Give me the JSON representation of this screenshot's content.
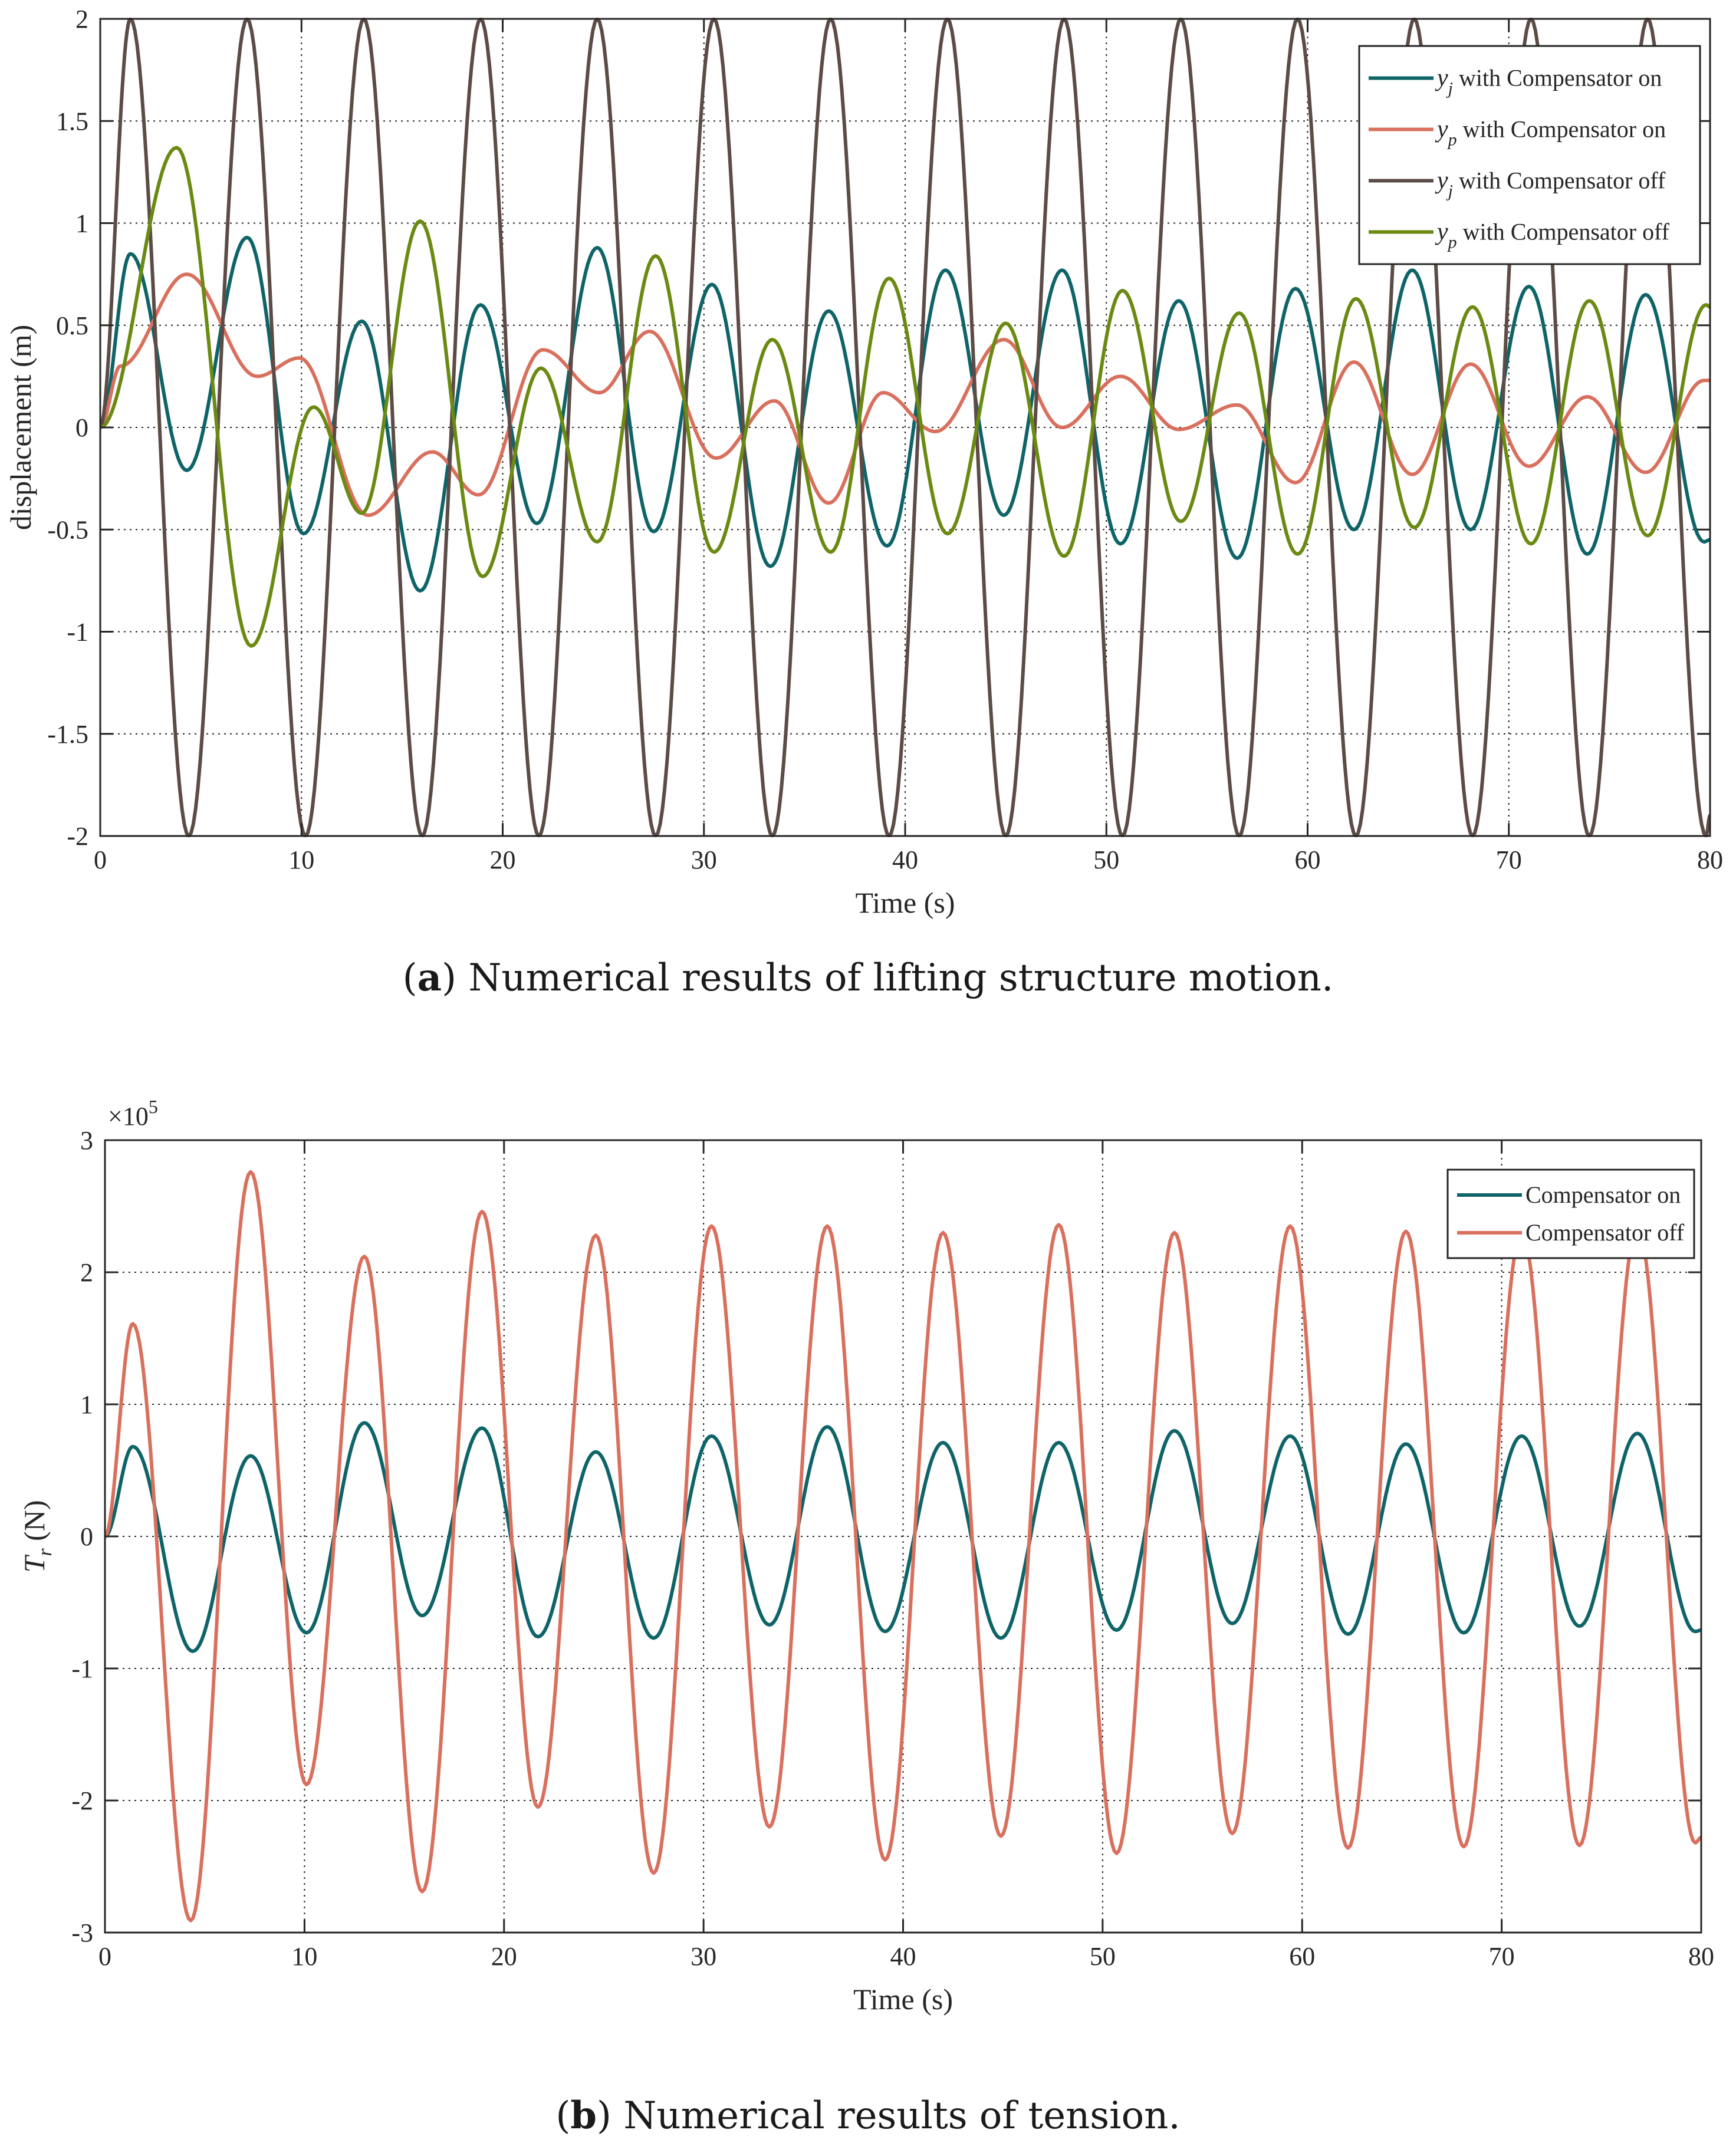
{
  "chart_data": [
    {
      "type": "line",
      "id": "a",
      "caption_letter": "a",
      "caption_text": ") Numerical results of lifting structure motion.",
      "xlabel": "Time (s)",
      "ylabel": "displacement (m)",
      "xlim": [
        0,
        80
      ],
      "ylim": [
        -2,
        2
      ],
      "xticks": [
        0,
        10,
        20,
        30,
        40,
        50,
        60,
        70,
        80
      ],
      "xtick_labels": [
        "0",
        "10",
        "20",
        "30",
        "40",
        "50",
        "60",
        "70",
        "80"
      ],
      "yticks": [
        -2,
        -1.5,
        -1,
        -0.5,
        0,
        0.5,
        1,
        1.5,
        2
      ],
      "ytick_labels": [
        "-2",
        "-1.5",
        "-1",
        "-0.5",
        "0",
        "0.5",
        "1",
        "1.5",
        "2"
      ],
      "grid": true,
      "legend_position": "top-right",
      "series": [
        {
          "name": "y_j with Compensator on",
          "sym": "y",
          "sub": "j",
          "label": " with Compensator on",
          "color": "#0e6468",
          "peaks": [
            [
              0,
              0
            ],
            [
              1.5,
              0.85
            ],
            [
              4.3,
              -0.21
            ],
            [
              7.3,
              0.93
            ],
            [
              10.1,
              -0.52
            ],
            [
              13.0,
              0.52
            ],
            [
              15.9,
              -0.8
            ],
            [
              18.9,
              0.6
            ],
            [
              21.7,
              -0.47
            ],
            [
              24.7,
              0.88
            ],
            [
              27.5,
              -0.51
            ],
            [
              30.4,
              0.7
            ],
            [
              33.3,
              -0.68
            ],
            [
              36.2,
              0.57
            ],
            [
              39.1,
              -0.58
            ],
            [
              42.0,
              0.77
            ],
            [
              44.9,
              -0.43
            ],
            [
              47.8,
              0.77
            ],
            [
              50.7,
              -0.57
            ],
            [
              53.6,
              0.62
            ],
            [
              56.5,
              -0.64
            ],
            [
              59.4,
              0.68
            ],
            [
              62.3,
              -0.5
            ],
            [
              65.2,
              0.77
            ],
            [
              68.1,
              -0.5
            ],
            [
              71.0,
              0.69
            ],
            [
              73.9,
              -0.62
            ],
            [
              76.8,
              0.65
            ],
            [
              79.7,
              -0.56
            ],
            [
              80,
              -0.55
            ]
          ]
        },
        {
          "name": "y_p with Compensator on",
          "sym": "y",
          "sub": "p",
          "label": " with Compensator on",
          "color": "#d9705e",
          "peaks": [
            [
              0,
              0
            ],
            [
              1.0,
              0.3
            ],
            [
              4.3,
              0.75
            ],
            [
              7.8,
              0.25
            ],
            [
              9.9,
              0.34
            ],
            [
              13.3,
              -0.43
            ],
            [
              16.5,
              -0.12
            ],
            [
              18.8,
              -0.33
            ],
            [
              22.0,
              0.38
            ],
            [
              24.8,
              0.17
            ],
            [
              27.3,
              0.47
            ],
            [
              30.6,
              -0.15
            ],
            [
              33.5,
              0.13
            ],
            [
              36.2,
              -0.37
            ],
            [
              38.9,
              0.17
            ],
            [
              41.5,
              -0.02
            ],
            [
              44.9,
              0.43
            ],
            [
              47.8,
              0.0
            ],
            [
              50.7,
              0.25
            ],
            [
              53.6,
              -0.01
            ],
            [
              56.5,
              0.11
            ],
            [
              59.4,
              -0.27
            ],
            [
              62.3,
              0.32
            ],
            [
              65.2,
              -0.23
            ],
            [
              68.1,
              0.31
            ],
            [
              71.0,
              -0.19
            ],
            [
              73.9,
              0.15
            ],
            [
              76.8,
              -0.22
            ],
            [
              79.7,
              0.23
            ],
            [
              80,
              0.23
            ]
          ]
        },
        {
          "name": "y_j with Compensator off",
          "sym": "y",
          "sub": "j",
          "label": " with Compensator off",
          "color": "#5c4b46",
          "peaks": [
            [
              0,
              0
            ],
            [
              1.5,
              2
            ],
            [
              4.4,
              -2
            ],
            [
              7.3,
              2
            ],
            [
              10.2,
              -2
            ],
            [
              13.1,
              2
            ],
            [
              16.0,
              -2
            ],
            [
              18.9,
              2
            ],
            [
              21.8,
              -2
            ],
            [
              24.7,
              2
            ],
            [
              27.6,
              -2
            ],
            [
              30.5,
              2
            ],
            [
              33.4,
              -2
            ],
            [
              36.3,
              2
            ],
            [
              39.2,
              -2
            ],
            [
              42.1,
              2
            ],
            [
              45.0,
              -2
            ],
            [
              47.9,
              2
            ],
            [
              50.8,
              -2
            ],
            [
              53.7,
              2
            ],
            [
              56.6,
              -2
            ],
            [
              59.5,
              2
            ],
            [
              62.4,
              -2
            ],
            [
              65.3,
              2
            ],
            [
              68.2,
              -2
            ],
            [
              71.1,
              2
            ],
            [
              74.0,
              -2
            ],
            [
              76.9,
              2
            ],
            [
              79.8,
              -2
            ],
            [
              80,
              -1.9
            ]
          ]
        },
        {
          "name": "y_p with Compensator off",
          "sym": "y",
          "sub": "p",
          "label": " with Compensator off",
          "color": "#6a8a12",
          "peaks": [
            [
              0,
              0
            ],
            [
              3.8,
              1.37
            ],
            [
              7.5,
              -1.07
            ],
            [
              10.6,
              0.1
            ],
            [
              13.0,
              -0.42
            ],
            [
              15.9,
              1.01
            ],
            [
              19.0,
              -0.73
            ],
            [
              21.9,
              0.29
            ],
            [
              24.7,
              -0.56
            ],
            [
              27.6,
              0.84
            ],
            [
              30.5,
              -0.61
            ],
            [
              33.4,
              0.43
            ],
            [
              36.3,
              -0.61
            ],
            [
              39.2,
              0.73
            ],
            [
              42.1,
              -0.52
            ],
            [
              45.0,
              0.51
            ],
            [
              47.9,
              -0.63
            ],
            [
              50.8,
              0.67
            ],
            [
              53.7,
              -0.46
            ],
            [
              56.6,
              0.56
            ],
            [
              59.5,
              -0.62
            ],
            [
              62.4,
              0.63
            ],
            [
              65.3,
              -0.49
            ],
            [
              68.2,
              0.59
            ],
            [
              71.1,
              -0.57
            ],
            [
              74.0,
              0.62
            ],
            [
              76.9,
              -0.53
            ],
            [
              79.8,
              0.6
            ],
            [
              80,
              0.59
            ]
          ]
        }
      ]
    },
    {
      "type": "line",
      "id": "b",
      "caption_letter": "b",
      "caption_text": ") Numerical results of tension.",
      "xlabel": "Time (s)",
      "ylabel_sym": "T",
      "ylabel_sub": "r",
      "ylabel_unit": " (N)",
      "exponent_base": "×10",
      "exponent_power": "5",
      "xlim": [
        0,
        80
      ],
      "ylim": [
        -3,
        3
      ],
      "xticks": [
        0,
        10,
        20,
        30,
        40,
        50,
        60,
        70,
        80
      ],
      "xtick_labels": [
        "0",
        "10",
        "20",
        "30",
        "40",
        "50",
        "60",
        "70",
        "80"
      ],
      "yticks": [
        -3,
        -2,
        -1,
        0,
        1,
        2,
        3
      ],
      "ytick_labels": [
        "-3",
        "-2",
        "-1",
        "0",
        "1",
        "2",
        "3"
      ],
      "grid": true,
      "legend_position": "top-right",
      "series": [
        {
          "name": "Compensator on",
          "label": "Compensator on",
          "color": "#0e6468",
          "peaks": [
            [
              0,
              0
            ],
            [
              1.4,
              0.68
            ],
            [
              4.4,
              -0.87
            ],
            [
              7.3,
              0.61
            ],
            [
              10.1,
              -0.73
            ],
            [
              13.0,
              0.86
            ],
            [
              15.9,
              -0.6
            ],
            [
              18.9,
              0.82
            ],
            [
              21.7,
              -0.76
            ],
            [
              24.6,
              0.64
            ],
            [
              27.5,
              -0.77
            ],
            [
              30.4,
              0.76
            ],
            [
              33.3,
              -0.67
            ],
            [
              36.2,
              0.83
            ],
            [
              39.1,
              -0.72
            ],
            [
              42.0,
              0.71
            ],
            [
              44.9,
              -0.77
            ],
            [
              47.8,
              0.71
            ],
            [
              50.7,
              -0.71
            ],
            [
              53.6,
              0.8
            ],
            [
              56.5,
              -0.66
            ],
            [
              59.4,
              0.76
            ],
            [
              62.3,
              -0.74
            ],
            [
              65.2,
              0.7
            ],
            [
              68.1,
              -0.73
            ],
            [
              71.0,
              0.76
            ],
            [
              73.9,
              -0.68
            ],
            [
              76.8,
              0.78
            ],
            [
              79.7,
              -0.72
            ],
            [
              80,
              -0.71
            ]
          ]
        },
        {
          "name": "Compensator off",
          "label": "Compensator off",
          "color": "#d9705e",
          "peaks": [
            [
              0,
              0
            ],
            [
              1.4,
              1.61
            ],
            [
              4.3,
              -2.91
            ],
            [
              7.3,
              2.76
            ],
            [
              10.1,
              -1.88
            ],
            [
              13.0,
              2.12
            ],
            [
              15.9,
              -2.69
            ],
            [
              18.9,
              2.46
            ],
            [
              21.7,
              -2.05
            ],
            [
              24.6,
              2.28
            ],
            [
              27.5,
              -2.55
            ],
            [
              30.4,
              2.35
            ],
            [
              33.3,
              -2.2
            ],
            [
              36.2,
              2.35
            ],
            [
              39.1,
              -2.45
            ],
            [
              42.0,
              2.3
            ],
            [
              44.9,
              -2.27
            ],
            [
              47.8,
              2.36
            ],
            [
              50.7,
              -2.4
            ],
            [
              53.6,
              2.3
            ],
            [
              56.5,
              -2.25
            ],
            [
              59.4,
              2.35
            ],
            [
              62.3,
              -2.36
            ],
            [
              65.2,
              2.31
            ],
            [
              68.1,
              -2.35
            ],
            [
              71.0,
              2.3
            ],
            [
              73.9,
              -2.34
            ],
            [
              76.8,
              2.34
            ],
            [
              79.7,
              -2.32
            ],
            [
              80,
              -2.28
            ]
          ]
        }
      ]
    }
  ]
}
